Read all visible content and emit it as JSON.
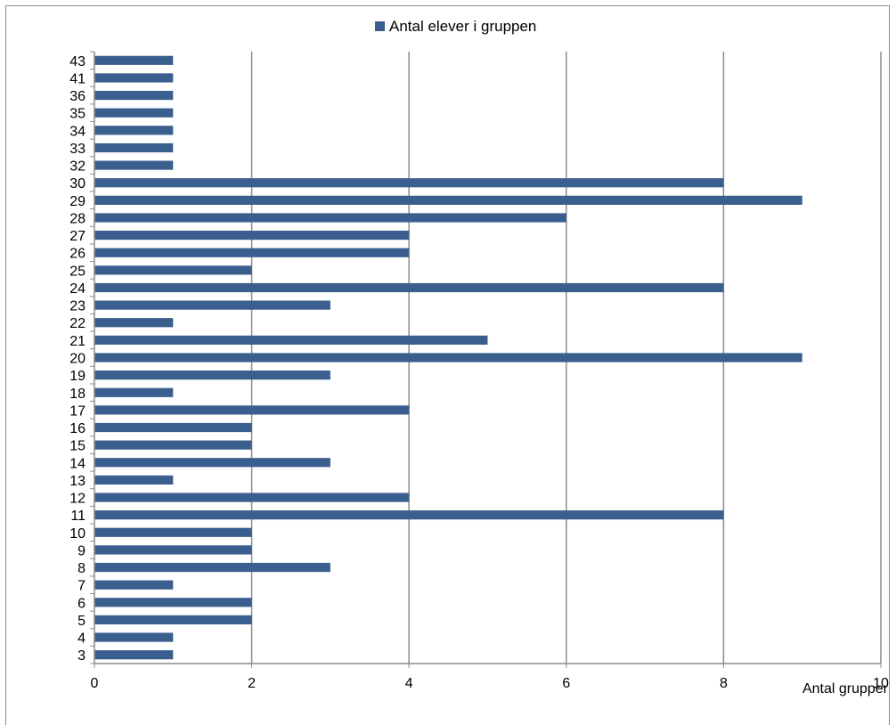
{
  "chart_data": {
    "type": "bar",
    "orientation": "horizontal",
    "categories": [
      "3",
      "4",
      "5",
      "6",
      "7",
      "8",
      "9",
      "10",
      "11",
      "12",
      "13",
      "14",
      "15",
      "16",
      "17",
      "18",
      "19",
      "20",
      "21",
      "22",
      "23",
      "24",
      "25",
      "26",
      "27",
      "28",
      "29",
      "30",
      "32",
      "33",
      "34",
      "35",
      "36",
      "41",
      "43"
    ],
    "series": [
      {
        "name": "Antal elever i gruppen",
        "values": [
          1,
          1,
          2,
          2,
          1,
          3,
          2,
          2,
          8,
          4,
          1,
          3,
          2,
          2,
          4,
          1,
          3,
          9,
          5,
          1,
          3,
          8,
          2,
          4,
          4,
          6,
          9,
          8,
          1,
          1,
          1,
          1,
          1,
          1,
          1
        ],
        "color": "#3a5f8f"
      }
    ],
    "xlabel": "Antal grupper",
    "ylabel": "",
    "xlim": [
      0,
      10
    ],
    "xticks": [
      "0",
      "2",
      "4",
      "6",
      "8",
      "10"
    ],
    "grid": "vertical",
    "legend_position": "top"
  }
}
